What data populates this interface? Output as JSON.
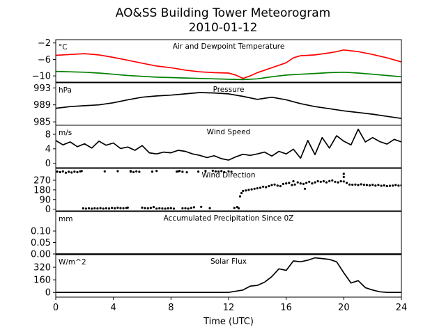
{
  "title_line1": "AO&SS Building Tower Meteorogram",
  "title_line2": "2010-01-12",
  "xlabel": "Time (UTC)",
  "chart_data": {
    "type": "line",
    "x_range": [
      0,
      24
    ],
    "x_ticks": [
      0,
      4,
      8,
      12,
      16,
      20,
      24
    ],
    "panels": [
      {
        "name": "Air and Dewpoint Temperature",
        "unit": "°C",
        "yticks": [
          -2,
          -6,
          -10
        ],
        "ylim": [
          -11.5,
          -1.2
        ],
        "series": [
          {
            "color": "#ff0000",
            "style": "line",
            "x": [
              0,
              1,
              2,
              3,
              4,
              5,
              6,
              7,
              8,
              9,
              10,
              11,
              12,
              12.5,
              13,
              13.5,
              14,
              15,
              16,
              16.5,
              17,
              18,
              19,
              19.5,
              20,
              21,
              22,
              23,
              24
            ],
            "y": [
              -5.0,
              -4.8,
              -4.6,
              -4.9,
              -5.5,
              -6.2,
              -6.9,
              -7.6,
              -8.0,
              -8.6,
              -9.0,
              -9.2,
              -9.3,
              -9.8,
              -10.6,
              -10.0,
              -9.2,
              -8.0,
              -6.8,
              -5.6,
              -5.1,
              -4.9,
              -4.4,
              -4.1,
              -3.7,
              -4.1,
              -4.8,
              -5.6,
              -6.6
            ]
          },
          {
            "color": "#008000",
            "style": "line",
            "x": [
              0,
              1,
              2,
              3,
              4,
              5,
              6,
              7,
              8,
              9,
              10,
              11,
              12,
              13,
              14,
              15,
              16,
              17,
              18,
              19,
              20,
              21,
              22,
              23,
              24
            ],
            "y": [
              -8.9,
              -9.0,
              -9.1,
              -9.3,
              -9.6,
              -9.9,
              -10.1,
              -10.3,
              -10.4,
              -10.5,
              -10.6,
              -10.7,
              -10.8,
              -10.9,
              -10.7,
              -10.2,
              -9.8,
              -9.6,
              -9.4,
              -9.2,
              -9.1,
              -9.3,
              -9.6,
              -9.9,
              -10.2
            ]
          }
        ]
      },
      {
        "name": "Pressure",
        "unit": "hPa",
        "yticks": [
          993,
          989,
          985
        ],
        "ylim": [
          984.2,
          994.2
        ],
        "series": [
          {
            "color": "#000000",
            "style": "line",
            "x": [
              0,
              1,
              2,
              3,
              4,
              5,
              6,
              7,
              8,
              9,
              10,
              11,
              12,
              13,
              14,
              15,
              16,
              17,
              18,
              19,
              20,
              21,
              22,
              23,
              24
            ],
            "y": [
              988.2,
              988.6,
              988.8,
              989.0,
              989.5,
              990.2,
              990.8,
              991.1,
              991.3,
              991.6,
              991.9,
              991.8,
              991.6,
              991.0,
              990.3,
              990.8,
              990.2,
              989.3,
              988.6,
              988.1,
              987.6,
              987.2,
              986.8,
              986.3,
              985.8
            ]
          }
        ]
      },
      {
        "name": "Wind Speed",
        "unit": "m/s",
        "yticks": [
          8,
          4,
          0
        ],
        "ylim": [
          -1.2,
          10.5
        ],
        "series": [
          {
            "color": "#000000",
            "style": "line",
            "x": [
              0,
              0.5,
              1,
              1.5,
              2,
              2.5,
              3,
              3.5,
              4,
              4.5,
              5,
              5.5,
              6,
              6.5,
              7,
              7.5,
              8,
              8.5,
              9,
              9.5,
              10,
              10.5,
              11,
              11.5,
              12,
              12.5,
              13,
              13.5,
              14,
              14.5,
              15,
              15.5,
              16,
              16.5,
              17,
              17.5,
              18,
              18.5,
              19,
              19.5,
              20,
              20.5,
              21,
              21.5,
              22,
              22.5,
              23,
              23.5,
              24
            ],
            "y": [
              6.3,
              5.1,
              5.9,
              4.6,
              5.4,
              4.2,
              6.1,
              5.0,
              5.6,
              4.1,
              4.5,
              3.6,
              4.9,
              2.9,
              2.6,
              3.1,
              2.9,
              3.6,
              3.3,
              2.6,
              2.2,
              1.6,
              2.1,
              1.3,
              0.9,
              1.8,
              2.5,
              2.2,
              2.6,
              3.1,
              2.0,
              3.3,
              2.6,
              3.9,
              1.4,
              6.3,
              2.4,
              7.1,
              4.2,
              7.6,
              6.1,
              5.1,
              9.4,
              5.9,
              7.1,
              6.0,
              5.3,
              6.6,
              5.9
            ]
          }
        ]
      },
      {
        "name": "Wind Direction",
        "unit": "",
        "yticks": [
          270,
          180,
          90,
          0
        ],
        "ylim": [
          -15,
          380
        ],
        "series": [
          {
            "color": "#000000",
            "style": "dots",
            "x": [
              0.1,
              0.3,
              0.5,
              0.7,
              0.9,
              1.1,
              1.3,
              1.5,
              1.7,
              1.8,
              1.9,
              2.1,
              2.3,
              2.5,
              2.7,
              2.9,
              3.1,
              3.3,
              3.5,
              3.7,
              3.9,
              4.1,
              4.3,
              4.5,
              4.7,
              4.9,
              5.0,
              5.2,
              3.4,
              4.3,
              5.2,
              5.4,
              5.6,
              5.8,
              6.0,
              6.2,
              6.4,
              6.6,
              6.8,
              7.0,
              7.2,
              7.4,
              7.6,
              7.8,
              8.0,
              8.2,
              8.4,
              8.6,
              8.8,
              9.0,
              9.2,
              9.4,
              6.7,
              7.0,
              8.5,
              8.8,
              9.1,
              9.6,
              9.9,
              10.1,
              10.4,
              10.7,
              10.9,
              11.1,
              11.3,
              11.5,
              11.7,
              12.0,
              12.2,
              12.4,
              12.6,
              12.7,
              12.8,
              12.9,
              13.0,
              13.2,
              13.4,
              13.6,
              13.8,
              14.0,
              14.2,
              14.4,
              14.6,
              14.8,
              15.0,
              15.2,
              15.4,
              15.6,
              15.8,
              16.0,
              16.2,
              16.4,
              16.6,
              16.8,
              17.0,
              17.2,
              17.4,
              17.6,
              17.8,
              18.0,
              18.2,
              18.4,
              18.6,
              18.8,
              19.0,
              19.2,
              19.4,
              19.6,
              19.8,
              20.0,
              20.2,
              20.4,
              20.6,
              20.8,
              21.0,
              21.2,
              21.4,
              21.6,
              21.8,
              22.0,
              22.2,
              22.4,
              22.6,
              22.8,
              23.0,
              23.2,
              23.4,
              23.6,
              23.8,
              24.0,
              20.0,
              20.0,
              16.5,
              17.3
            ],
            "y": [
              350,
              345,
              352,
              340,
              348,
              342,
              350,
              345,
              352,
              355,
              8,
              6,
              9,
              5,
              8,
              7,
              10,
              6,
              9,
              7,
              12,
              8,
              14,
              10,
              9,
              12,
              15,
              355,
              352,
              354,
              350,
              346,
              352,
              348,
              15,
              10,
              8,
              12,
              20,
              6,
              9,
              7,
              5,
              8,
              10,
              6,
              350,
              356,
              8,
              9,
              5,
              12,
              350,
              356,
              352,
              348,
              344,
              18,
              350,
              22,
              356,
              10,
              358,
              352,
              350,
              355,
              345,
              352,
              348,
              12,
              20,
              8,
              120,
              150,
              170,
              175,
              180,
              185,
              190,
              195,
              200,
              210,
              205,
              215,
              225,
              230,
              220,
              215,
              235,
              240,
              245,
              225,
              230,
              250,
              240,
              235,
              245,
              255,
              240,
              250,
              260,
              255,
              260,
              250,
              262,
              268,
              255,
              250,
              260,
              258,
              245,
              230,
              228,
              230,
              225,
              232,
              228,
              225,
              222,
              228,
              220,
              226,
              218,
              222,
              215,
              218,
              220,
              225,
              220,
              222,
              300,
              330,
              260,
              190
            ]
          }
        ]
      },
      {
        "name": "Accumulated Precipitation Since 0Z",
        "unit": "mm",
        "yticks": [
          0.1,
          0.05,
          0.0
        ],
        "ylim": [
          0.0,
          0.185
        ],
        "series": [
          {
            "color": "#000000",
            "style": "line",
            "x": [
              0,
              24
            ],
            "y": [
              0.0,
              0.0
            ]
          }
        ]
      },
      {
        "name": "Solar Flux",
        "unit": "W/m^2",
        "yticks": [
          320,
          160,
          0
        ],
        "ylim": [
          -60,
          480
        ],
        "series": [
          {
            "color": "#000000",
            "style": "line",
            "x": [
              0,
              6,
              12,
              13,
              13.5,
              14,
              14.5,
              15,
              15.5,
              16,
              16.5,
              17,
              17.5,
              18,
              18.5,
              19,
              19.5,
              20,
              20.5,
              21,
              21.5,
              22,
              22.5,
              23,
              24
            ],
            "y": [
              0,
              0,
              0,
              30,
              80,
              90,
              130,
              200,
              300,
              280,
              400,
              390,
              410,
              440,
              430,
              420,
              390,
              250,
              120,
              150,
              60,
              30,
              8,
              0,
              0
            ]
          }
        ]
      }
    ]
  }
}
